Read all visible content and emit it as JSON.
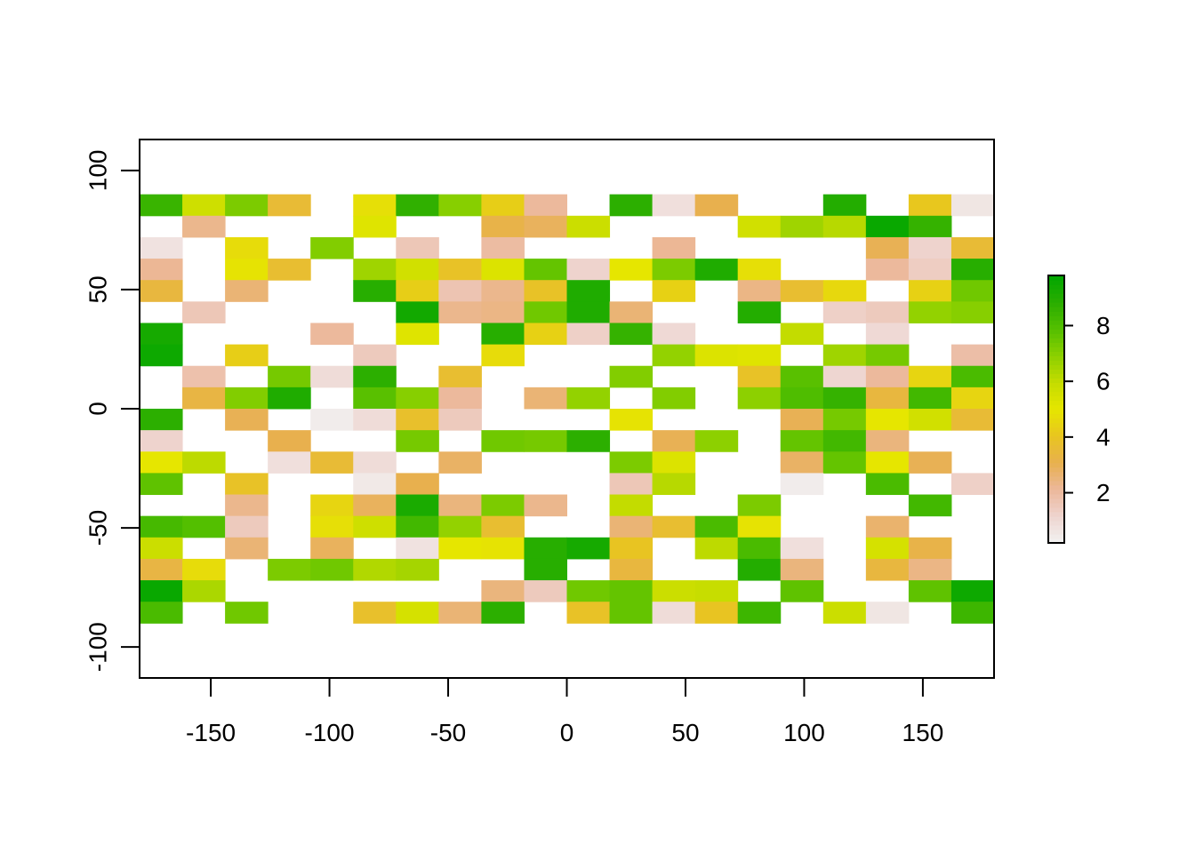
{
  "chart_data": {
    "type": "heatmap",
    "title": "",
    "xlabel": "",
    "ylabel": "",
    "xlim": [
      -180,
      180
    ],
    "ylim": [
      -113,
      113
    ],
    "cell_width": 18,
    "cell_height": 9,
    "x_start": -180,
    "y_top": 90,
    "x_ticks": [
      -150,
      -100,
      -50,
      0,
      50,
      100,
      150
    ],
    "x_tick_labels": [
      "-150",
      "-100",
      "-50",
      "0",
      "50",
      "100",
      "150"
    ],
    "y_ticks": [
      -100,
      -50,
      0,
      50,
      100
    ],
    "y_tick_labels": [
      "-100",
      "-50",
      "0",
      "50",
      "100"
    ],
    "legend": {
      "position": "right",
      "range": [
        0.2,
        9.8
      ],
      "ticks": [
        2,
        4,
        6,
        8
      ],
      "tick_labels": [
        "2",
        "4",
        "6",
        "8"
      ],
      "colors": [
        "#F2F2F2",
        "#EED4CF",
        "#ECB89B",
        "#E8B04F",
        "#E8C520",
        "#E6E600",
        "#C5DC00",
        "#8CD000",
        "#54BF00",
        "#2AAE00",
        "#00A600"
      ]
    },
    "grid": [
      [
        8.5,
        5.7,
        7.2,
        3.6,
        null,
        4.8,
        8.7,
        7.0,
        4.3,
        2.1,
        null,
        8.8,
        0.8,
        3.1,
        null,
        null,
        9.0,
        null,
        4.1,
        0.6
      ],
      [
        null,
        2.3,
        null,
        null,
        null,
        5.2,
        null,
        null,
        3.2,
        2.9,
        5.8,
        null,
        null,
        null,
        5.6,
        6.6,
        6.2,
        9.6,
        8.6,
        null
      ],
      [
        0.7,
        null,
        4.7,
        null,
        7.1,
        null,
        1.6,
        null,
        2.0,
        null,
        null,
        null,
        2.2,
        null,
        null,
        null,
        null,
        3.0,
        1.2,
        3.6
      ],
      [
        2.2,
        null,
        4.9,
        3.7,
        null,
        6.6,
        5.6,
        3.9,
        5.3,
        7.6,
        1.2,
        5.0,
        7.2,
        9.1,
        4.8,
        null,
        null,
        2.1,
        1.4,
        8.9
      ],
      [
        3.4,
        null,
        2.6,
        null,
        null,
        8.9,
        4.3,
        1.7,
        2.3,
        3.9,
        9.1,
        null,
        4.4,
        null,
        2.4,
        3.7,
        4.6,
        null,
        4.4,
        7.4
      ],
      [
        null,
        1.6,
        null,
        null,
        null,
        null,
        9.4,
        2.3,
        2.4,
        7.4,
        9.1,
        2.6,
        null,
        null,
        9.0,
        null,
        1.3,
        1.5,
        6.8,
        7.0
      ],
      [
        9.3,
        null,
        null,
        null,
        2.1,
        null,
        5.2,
        null,
        8.9,
        4.4,
        1.3,
        8.6,
        1.0,
        null,
        null,
        6.0,
        null,
        1.0,
        null,
        null
      ],
      [
        9.5,
        null,
        4.3,
        null,
        null,
        1.5,
        null,
        null,
        4.7,
        null,
        null,
        null,
        6.8,
        5.3,
        5.2,
        null,
        6.6,
        7.3,
        null,
        1.9
      ],
      [
        null,
        1.8,
        null,
        7.3,
        0.9,
        8.8,
        null,
        3.7,
        null,
        null,
        null,
        7.1,
        null,
        null,
        3.9,
        7.8,
        1.1,
        2.1,
        4.5,
        8.1
      ],
      [
        null,
        3.3,
        7.1,
        9.1,
        null,
        7.8,
        7.0,
        2.1,
        null,
        2.6,
        6.8,
        null,
        7.1,
        null,
        6.9,
        8.0,
        8.6,
        3.4,
        8.3,
        4.5
      ],
      [
        8.8,
        null,
        3.0,
        null,
        0.4,
        0.9,
        3.8,
        1.5,
        null,
        null,
        null,
        4.9,
        null,
        null,
        null,
        3.0,
        7.3,
        5.0,
        5.6,
        3.6
      ],
      [
        1.2,
        null,
        null,
        3.1,
        null,
        null,
        7.3,
        null,
        7.4,
        7.3,
        8.8,
        null,
        3.0,
        6.9,
        null,
        7.6,
        8.3,
        2.5,
        null,
        null
      ],
      [
        5.0,
        6.1,
        null,
        0.8,
        3.6,
        0.9,
        null,
        2.8,
        null,
        null,
        null,
        7.2,
        5.3,
        null,
        null,
        2.8,
        7.6,
        5.0,
        3.0,
        null
      ],
      [
        7.7,
        null,
        3.9,
        null,
        null,
        0.5,
        3.1,
        null,
        null,
        null,
        null,
        1.6,
        6.2,
        null,
        null,
        0.4,
        null,
        8.1,
        null,
        1.3
      ],
      [
        null,
        null,
        2.3,
        null,
        4.5,
        2.9,
        9.2,
        2.5,
        7.2,
        2.3,
        null,
        6.0,
        null,
        null,
        7.2,
        null,
        null,
        null,
        8.3,
        null
      ],
      [
        8.2,
        7.9,
        1.5,
        null,
        4.8,
        5.7,
        8.3,
        6.8,
        3.7,
        null,
        null,
        2.6,
        3.7,
        8.1,
        4.9,
        null,
        null,
        2.7,
        null,
        null
      ],
      [
        5.8,
        null,
        2.6,
        null,
        2.9,
        null,
        0.7,
        5.0,
        4.9,
        8.9,
        9.3,
        4.0,
        null,
        6.1,
        8.1,
        0.8,
        null,
        5.5,
        3.2,
        null
      ],
      [
        3.3,
        4.7,
        null,
        7.2,
        7.4,
        6.3,
        6.5,
        null,
        null,
        8.9,
        null,
        3.4,
        null,
        null,
        9.0,
        2.5,
        null,
        3.4,
        2.4,
        null
      ],
      [
        9.6,
        6.4,
        null,
        null,
        null,
        null,
        null,
        null,
        2.5,
        1.5,
        7.4,
        7.6,
        5.8,
        5.9,
        null,
        7.7,
        null,
        null,
        7.7,
        9.5
      ],
      [
        8.1,
        null,
        7.4,
        null,
        null,
        3.8,
        5.5,
        2.6,
        8.8,
        null,
        3.9,
        7.6,
        0.9,
        4.0,
        8.4,
        null,
        5.8,
        0.6,
        null,
        8.4
      ]
    ]
  }
}
